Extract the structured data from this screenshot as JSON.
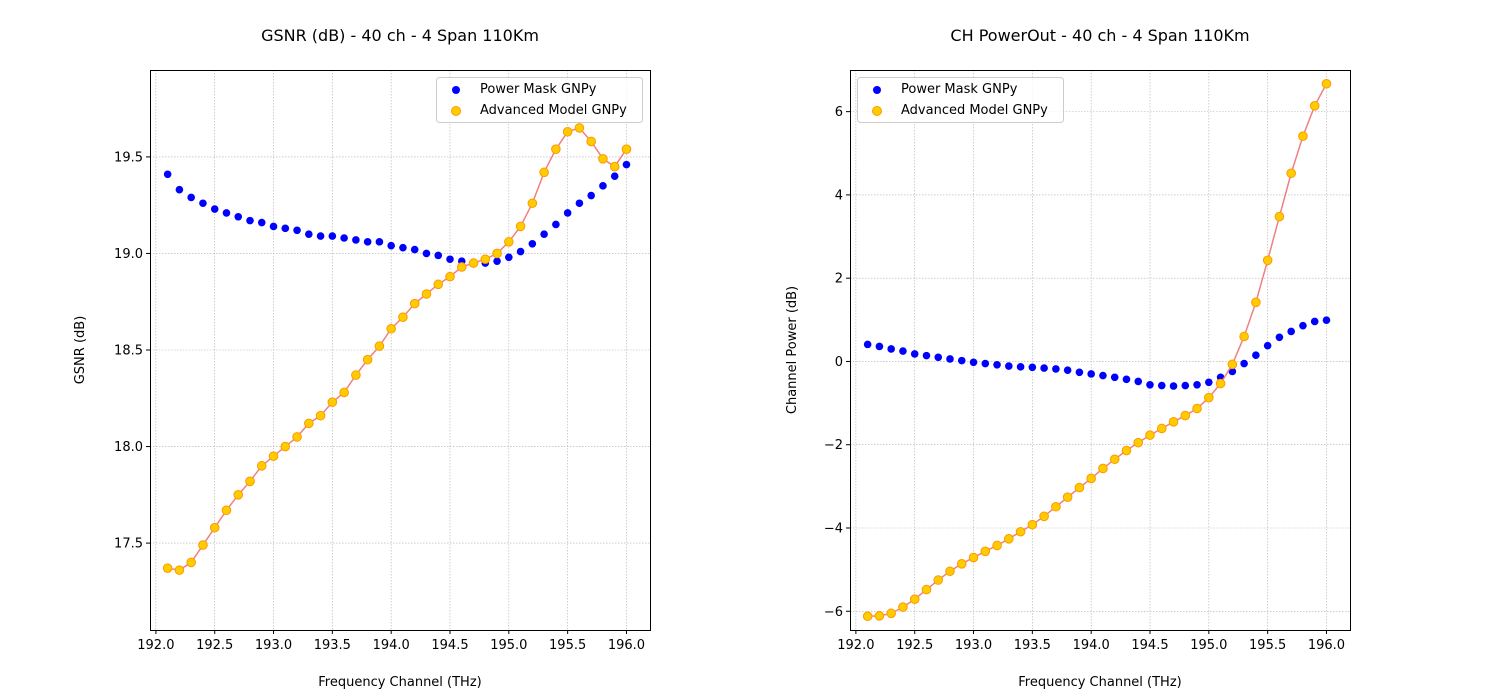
{
  "chart_data": [
    {
      "type": "scatter",
      "title": "GSNR (dB) - 40 ch - 4 Span 110Km",
      "xlabel": "Frequency Channel (THz)",
      "ylabel": "GSNR (dB)",
      "xlim": [
        191.95,
        196.2
      ],
      "ylim": [
        17.05,
        19.95
      ],
      "xticks": [
        192.0,
        192.5,
        193.0,
        193.5,
        194.0,
        194.5,
        195.0,
        195.5,
        196.0
      ],
      "xtick_labels": [
        "192.0",
        "192.5",
        "193.0",
        "193.5",
        "194.0",
        "194.5",
        "195.0",
        "195.5",
        "196.0"
      ],
      "yticks": [
        17.5,
        18.0,
        18.5,
        19.0,
        19.5
      ],
      "ytick_labels": [
        "17.5",
        "18.0",
        "18.5",
        "19.0",
        "19.5"
      ],
      "grid": true,
      "legend_position": "top-right",
      "x": [
        192.1,
        192.2,
        192.3,
        192.4,
        192.5,
        192.6,
        192.7,
        192.8,
        192.9,
        193.0,
        193.1,
        193.2,
        193.3,
        193.4,
        193.5,
        193.6,
        193.7,
        193.8,
        193.9,
        194.0,
        194.1,
        194.2,
        194.3,
        194.4,
        194.5,
        194.6,
        194.7,
        194.8,
        194.9,
        195.0,
        195.1,
        195.2,
        195.3,
        195.4,
        195.5,
        195.6,
        195.7,
        195.8,
        195.9,
        196.0
      ],
      "series": [
        {
          "name": "Power Mask GNPy",
          "color": "#0000ff",
          "line": false,
          "values": [
            19.41,
            19.33,
            19.29,
            19.26,
            19.23,
            19.21,
            19.19,
            19.17,
            19.16,
            19.14,
            19.13,
            19.12,
            19.1,
            19.09,
            19.09,
            19.08,
            19.07,
            19.06,
            19.06,
            19.04,
            19.03,
            19.02,
            19.0,
            18.99,
            18.97,
            18.96,
            18.95,
            18.95,
            18.96,
            18.98,
            19.01,
            19.05,
            19.1,
            19.15,
            19.21,
            19.26,
            19.3,
            19.35,
            19.4,
            19.46
          ]
        },
        {
          "name": "Advanced Model GNPy",
          "color": "#ffcc00",
          "edge_color": "#ff9900",
          "line": true,
          "line_color": "#f08080",
          "values": [
            17.37,
            17.36,
            17.4,
            17.49,
            17.58,
            17.67,
            17.75,
            17.82,
            17.9,
            17.95,
            18.0,
            18.05,
            18.12,
            18.16,
            18.23,
            18.28,
            18.37,
            18.45,
            18.52,
            18.61,
            18.67,
            18.74,
            18.79,
            18.84,
            18.88,
            18.93,
            18.95,
            18.97,
            19.0,
            19.06,
            19.14,
            19.26,
            19.42,
            19.54,
            19.63,
            19.65,
            19.58,
            19.49,
            19.45,
            19.54
          ]
        }
      ]
    },
    {
      "type": "scatter",
      "title": "CH PowerOut - 40 ch - 4 Span 110Km",
      "xlabel": "Frequency Channel (THz)",
      "ylabel": "Channel Power (dB)",
      "xlim": [
        191.95,
        196.2
      ],
      "ylim": [
        -6.45,
        7.0
      ],
      "xticks": [
        192.0,
        192.5,
        193.0,
        193.5,
        194.0,
        194.5,
        195.0,
        195.5,
        196.0
      ],
      "xtick_labels": [
        "192.0",
        "192.5",
        "193.0",
        "193.5",
        "194.0",
        "194.5",
        "195.0",
        "195.5",
        "196.0"
      ],
      "yticks": [
        -6,
        -4,
        -2,
        0,
        2,
        4,
        6
      ],
      "ytick_labels": [
        "−6",
        "−4",
        "−2",
        "0",
        "2",
        "4",
        "6"
      ],
      "grid": true,
      "legend_position": "top-left",
      "x": [
        192.1,
        192.2,
        192.3,
        192.4,
        192.5,
        192.6,
        192.7,
        192.8,
        192.9,
        193.0,
        193.1,
        193.2,
        193.3,
        193.4,
        193.5,
        193.6,
        193.7,
        193.8,
        193.9,
        194.0,
        194.1,
        194.2,
        194.3,
        194.4,
        194.5,
        194.6,
        194.7,
        194.8,
        194.9,
        195.0,
        195.1,
        195.2,
        195.3,
        195.4,
        195.5,
        195.6,
        195.7,
        195.8,
        195.9,
        196.0
      ],
      "series": [
        {
          "name": "Power Mask GNPy",
          "color": "#0000ff",
          "line": false,
          "values": [
            0.41,
            0.36,
            0.3,
            0.25,
            0.18,
            0.14,
            0.1,
            0.06,
            0.02,
            -0.02,
            -0.05,
            -0.08,
            -0.11,
            -0.13,
            -0.14,
            -0.16,
            -0.18,
            -0.21,
            -0.26,
            -0.3,
            -0.34,
            -0.38,
            -0.43,
            -0.48,
            -0.56,
            -0.58,
            -0.59,
            -0.58,
            -0.56,
            -0.5,
            -0.38,
            -0.24,
            -0.05,
            0.15,
            0.38,
            0.58,
            0.72,
            0.86,
            0.96,
            0.99
          ]
        },
        {
          "name": "Advanced Model GNPy",
          "color": "#ffcc00",
          "edge_color": "#ff9900",
          "line": true,
          "line_color": "#f08080",
          "values": [
            -6.12,
            -6.11,
            -6.05,
            -5.9,
            -5.71,
            -5.48,
            -5.25,
            -5.04,
            -4.86,
            -4.71,
            -4.56,
            -4.42,
            -4.26,
            -4.09,
            -3.92,
            -3.72,
            -3.49,
            -3.26,
            -3.03,
            -2.81,
            -2.57,
            -2.35,
            -2.14,
            -1.95,
            -1.77,
            -1.61,
            -1.45,
            -1.3,
            -1.13,
            -0.87,
            -0.53,
            -0.07,
            0.6,
            1.42,
            2.43,
            3.48,
            4.52,
            5.41,
            6.14,
            6.67
          ]
        }
      ]
    }
  ]
}
